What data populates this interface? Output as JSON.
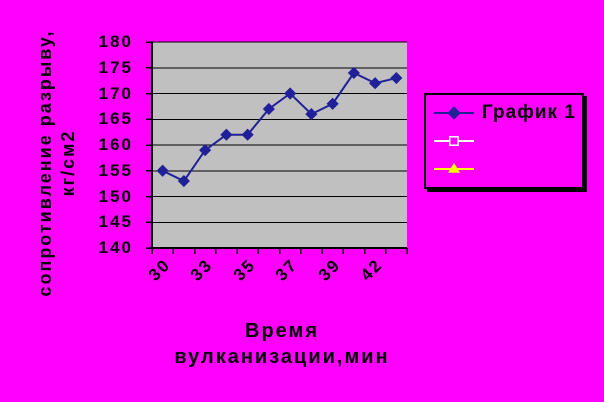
{
  "background_color": "#FF00FF",
  "chart_data": {
    "type": "line",
    "title": "",
    "plot_bg": "#C0C0C0",
    "grid": "horizontal",
    "grid_color": "#000000",
    "axis_color": "#000000",
    "ylim": [
      140,
      180
    ],
    "y_tick_step": 5,
    "y_tick_labels": [
      "180",
      "175",
      "170",
      "165",
      "160",
      "155",
      "150",
      "145",
      "140"
    ],
    "x_tick_labels": [
      "30",
      "",
      "33",
      "",
      "35",
      "",
      "37",
      "",
      "39",
      "",
      "42",
      ""
    ],
    "x_title_line1": "Время",
    "x_title_line2": "вулканизации,мин",
    "y_title_line1": "сопротивление разрыву,",
    "y_title_line2": "кг/см2",
    "legend_position": "right",
    "series": [
      {
        "name": "График 1",
        "marker": "diamond",
        "color": "#202099",
        "values": [
          155,
          153,
          159,
          162,
          162,
          167,
          170,
          166,
          168,
          174,
          172,
          173
        ]
      }
    ],
    "legend_entries": [
      {
        "label": "График 1",
        "marker": "diamond",
        "color": "#202099",
        "marker_fill": "#202099"
      },
      {
        "label": "",
        "marker": "square",
        "color": "#FFFFFF",
        "marker_fill": "#FF00FF"
      },
      {
        "label": "",
        "marker": "triangle",
        "color": "#FFFF00",
        "marker_fill": "#FFFF00"
      }
    ]
  }
}
